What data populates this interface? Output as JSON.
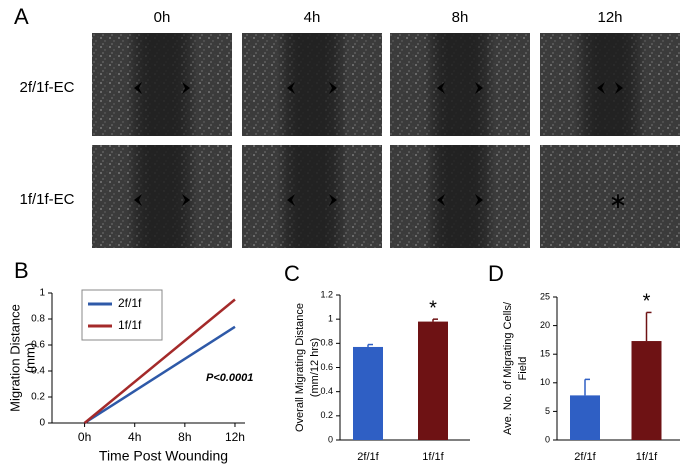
{
  "panel_a": {
    "letter": "A",
    "columns": [
      "0h",
      "4h",
      "8h",
      "12h"
    ],
    "rows": [
      "2f/1f-EC",
      "1f/1f-EC"
    ]
  },
  "chart_data": [
    {
      "type": "line",
      "panel_label": "B",
      "x_label": "Time Post Wounding",
      "y_label": [
        "Migration Distance",
        "(mm)"
      ],
      "x": [
        0,
        12
      ],
      "xlim": [
        -2.6,
        12.8
      ],
      "xticks": [
        {
          "value": 0,
          "label": "0h"
        },
        {
          "value": 4,
          "label": "4h"
        },
        {
          "value": 8,
          "label": "8h"
        },
        {
          "value": 12,
          "label": "12h"
        }
      ],
      "ylim": [
        0,
        1
      ],
      "yticks": [
        0,
        0.2,
        0.4,
        0.6,
        0.8,
        1
      ],
      "series": [
        {
          "name": "2f/1f",
          "color": "#2e59a8",
          "values": [
            0,
            0.74
          ]
        },
        {
          "name": "1f/1f",
          "color": "#a42a2a",
          "values": [
            0,
            0.95
          ]
        }
      ],
      "annotation": "P<0.0001"
    },
    {
      "type": "bar",
      "panel_label": "C",
      "y_label": [
        "Overall Migrating Distance",
        "(mm/12 hrs)"
      ],
      "categories": [
        "2f/1f",
        "1f/1f"
      ],
      "values": [
        0.77,
        0.98
      ],
      "errors": [
        0.02,
        0.02
      ],
      "colors": [
        "#2f5fc4",
        "#6e1214"
      ],
      "ylim": [
        0,
        1.2
      ],
      "yticks": [
        0,
        0.2,
        0.4,
        0.6,
        0.8,
        1,
        1.2
      ],
      "annotation": "*"
    },
    {
      "type": "bar",
      "panel_label": "D",
      "y_label": [
        "Ave. No. of Migrating Cells/",
        "Field"
      ],
      "categories": [
        "2f/1f",
        "1f/1f"
      ],
      "values": [
        7.8,
        17.3
      ],
      "errors": [
        2.8,
        5
      ],
      "colors": [
        "#2f5fc4",
        "#6e1214"
      ],
      "ylim": [
        0,
        25
      ],
      "yticks": [
        0,
        5,
        10,
        15,
        20,
        25
      ],
      "annotation": "*"
    }
  ]
}
